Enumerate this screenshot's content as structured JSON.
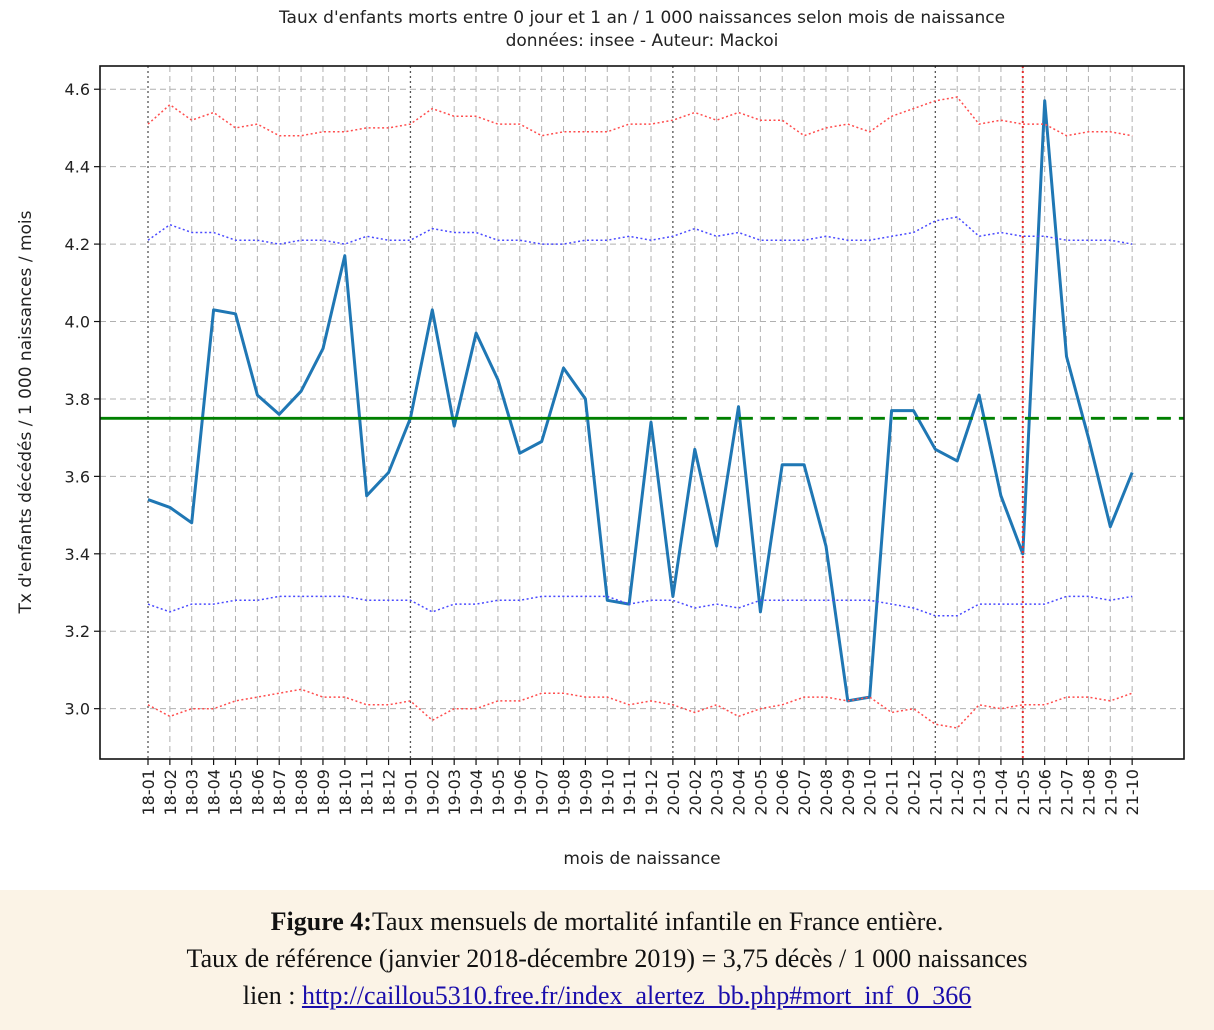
{
  "chart_data": {
    "type": "line",
    "title": "Taux d'enfants morts entre 0 jour et 1 an / 1 000 naissances selon mois de naissance",
    "subtitle": "données: insee - Auteur: Mackoi",
    "xlabel": "mois de naissance",
    "ylabel": "Tx d'enfants décédés / 1 000 naissances / mois",
    "categories": [
      "18-01",
      "18-02",
      "18-03",
      "18-04",
      "18-05",
      "18-06",
      "18-07",
      "18-08",
      "18-09",
      "18-10",
      "18-11",
      "18-12",
      "19-01",
      "19-02",
      "19-03",
      "19-04",
      "19-05",
      "19-06",
      "19-07",
      "19-08",
      "19-09",
      "19-10",
      "19-11",
      "19-12",
      "20-01",
      "20-02",
      "20-03",
      "20-04",
      "20-05",
      "20-06",
      "20-07",
      "20-08",
      "20-09",
      "20-10",
      "20-11",
      "20-12",
      "21-01",
      "21-02",
      "21-03",
      "21-04",
      "21-05",
      "21-06",
      "21-07",
      "21-08",
      "21-09",
      "21-10"
    ],
    "yticks": [
      3.0,
      3.2,
      3.4,
      3.6,
      3.8,
      4.0,
      4.2,
      4.4,
      4.6
    ],
    "ylim": [
      2.87,
      4.66
    ],
    "grid": true,
    "reference_value": 3.75,
    "reference_solid_until": "20-01",
    "vertical_marker": "21-05",
    "series": [
      {
        "role": "main",
        "color": "#1f77b4",
        "values": [
          3.54,
          3.52,
          3.48,
          4.03,
          4.02,
          3.81,
          3.76,
          3.82,
          3.93,
          4.17,
          3.55,
          3.61,
          3.75,
          4.03,
          3.73,
          3.97,
          3.85,
          3.66,
          3.69,
          3.88,
          3.8,
          3.28,
          3.27,
          3.74,
          3.29,
          3.67,
          3.42,
          3.78,
          3.25,
          3.63,
          3.63,
          3.42,
          3.02,
          3.03,
          3.77,
          3.77,
          3.67,
          3.64,
          3.81,
          3.55,
          3.4,
          4.57,
          3.91,
          3.7,
          3.47,
          3.61
        ]
      },
      {
        "role": "upper-outer",
        "color": "#ff4d4d",
        "values": [
          4.51,
          4.56,
          4.52,
          4.54,
          4.5,
          4.51,
          4.48,
          4.48,
          4.49,
          4.49,
          4.5,
          4.5,
          4.51,
          4.55,
          4.53,
          4.53,
          4.51,
          4.51,
          4.48,
          4.49,
          4.49,
          4.49,
          4.51,
          4.51,
          4.52,
          4.54,
          4.52,
          4.54,
          4.52,
          4.52,
          4.48,
          4.5,
          4.51,
          4.49,
          4.53,
          4.55,
          4.57,
          4.58,
          4.51,
          4.52,
          4.51,
          4.51,
          4.48,
          4.49,
          4.49,
          4.48
        ]
      },
      {
        "role": "upper-inner",
        "color": "#4a4aff",
        "values": [
          4.21,
          4.25,
          4.23,
          4.23,
          4.21,
          4.21,
          4.2,
          4.21,
          4.21,
          4.2,
          4.22,
          4.21,
          4.21,
          4.24,
          4.23,
          4.23,
          4.21,
          4.21,
          4.2,
          4.2,
          4.21,
          4.21,
          4.22,
          4.21,
          4.22,
          4.24,
          4.22,
          4.23,
          4.21,
          4.21,
          4.21,
          4.22,
          4.21,
          4.21,
          4.22,
          4.23,
          4.26,
          4.27,
          4.22,
          4.23,
          4.22,
          4.22,
          4.21,
          4.21,
          4.21,
          4.2
        ]
      },
      {
        "role": "lower-inner",
        "color": "#4a4aff",
        "values": [
          3.27,
          3.25,
          3.27,
          3.27,
          3.28,
          3.28,
          3.29,
          3.29,
          3.29,
          3.29,
          3.28,
          3.28,
          3.28,
          3.25,
          3.27,
          3.27,
          3.28,
          3.28,
          3.29,
          3.29,
          3.29,
          3.29,
          3.27,
          3.28,
          3.28,
          3.26,
          3.27,
          3.26,
          3.28,
          3.28,
          3.28,
          3.28,
          3.28,
          3.28,
          3.27,
          3.26,
          3.24,
          3.24,
          3.27,
          3.27,
          3.27,
          3.27,
          3.29,
          3.29,
          3.28,
          3.29
        ]
      },
      {
        "role": "lower-outer",
        "color": "#ff4d4d",
        "values": [
          3.01,
          2.98,
          3.0,
          3.0,
          3.02,
          3.03,
          3.04,
          3.05,
          3.03,
          3.03,
          3.01,
          3.01,
          3.02,
          2.97,
          3.0,
          3.0,
          3.02,
          3.02,
          3.04,
          3.04,
          3.03,
          3.03,
          3.01,
          3.02,
          3.01,
          2.99,
          3.01,
          2.98,
          3.0,
          3.01,
          3.03,
          3.03,
          3.02,
          3.03,
          2.99,
          3.0,
          2.96,
          2.95,
          3.01,
          3.0,
          3.01,
          3.01,
          3.03,
          3.03,
          3.02,
          3.04
        ]
      }
    ],
    "colors": {
      "reference_line": "#008000",
      "vertical_marker": "#e53030"
    }
  },
  "caption": {
    "figure_label": "Figure 4:",
    "line1": "Taux mensuels de mortalité infantile en France entière.",
    "line2": "Taux de référence (janvier 2018-décembre 2019)  = 3,75 décès / 1 000 naissances",
    "link_prefix": "lien : ",
    "link_text": "http://caillou5310.free.fr/index_alertez_bb.php#mort_inf_0_366"
  }
}
